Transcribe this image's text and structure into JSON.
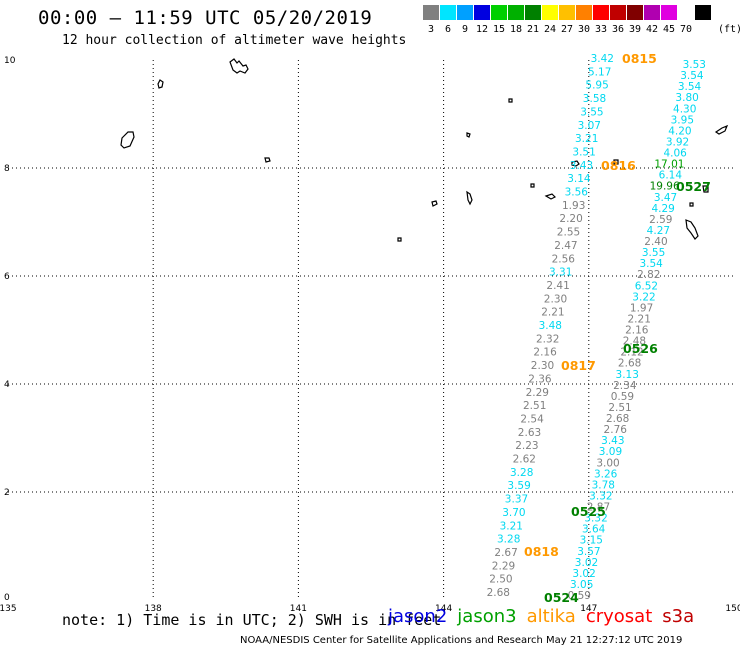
{
  "header": {
    "title": "00:00 – 11:59 UTC 05/20/2019",
    "subtitle": "12 hour collection of altimeter wave heights"
  },
  "colorbar": {
    "unit_label": "(ft)",
    "bins": [
      {
        "color": "#808080",
        "label": "3"
      },
      {
        "color": "#00e5ff",
        "label": "6"
      },
      {
        "color": "#00a0ff",
        "label": "9"
      },
      {
        "color": "#0000e0",
        "label": "12"
      },
      {
        "color": "#00d000",
        "label": "15"
      },
      {
        "color": "#00b000",
        "label": "18"
      },
      {
        "color": "#008000",
        "label": "21"
      },
      {
        "color": "#ffff00",
        "label": "24"
      },
      {
        "color": "#ffc000",
        "label": "27"
      },
      {
        "color": "#ff8000",
        "label": "30"
      },
      {
        "color": "#ff0000",
        "label": "33"
      },
      {
        "color": "#c00000",
        "label": "36"
      },
      {
        "color": "#800000",
        "label": "39"
      },
      {
        "color": "#b000b0",
        "label": "42"
      },
      {
        "color": "#e000e0",
        "label": "45"
      },
      {
        "color": "#ffffff",
        "label": "70"
      },
      {
        "color": "#000000",
        "label": ""
      }
    ]
  },
  "map": {
    "lon_ticks": [
      "135",
      "138",
      "141",
      "144",
      "147",
      "150"
    ],
    "lat_ticks": [
      "0",
      "2",
      "4",
      "6",
      "8",
      "10"
    ],
    "lon_range": [
      135,
      150
    ],
    "lat_range": [
      0,
      10
    ],
    "colors": {
      "grey": "#808080",
      "cyan": "#00d8f0",
      "orange": "#ff9900",
      "green": "#008000",
      "lightgreen": "#00a000"
    },
    "track_a": [
      {
        "v": "0.59",
        "c": "grey"
      },
      {
        "v": "3.05",
        "c": "cyan"
      },
      {
        "v": "3.02",
        "c": "cyan"
      },
      {
        "v": "3.02",
        "c": "cyan"
      },
      {
        "v": "3.57",
        "c": "cyan"
      },
      {
        "v": "3.15",
        "c": "cyan"
      },
      {
        "v": "3.64",
        "c": "cyan"
      },
      {
        "v": "3.32",
        "c": "cyan"
      },
      {
        "v": "2.87",
        "c": "grey"
      },
      {
        "v": "3.32",
        "c": "cyan"
      },
      {
        "v": "3.78",
        "c": "cyan"
      },
      {
        "v": "3.26",
        "c": "cyan"
      },
      {
        "v": "3.00",
        "c": "grey"
      },
      {
        "v": "3.09",
        "c": "cyan"
      },
      {
        "v": "3.43",
        "c": "cyan"
      },
      {
        "v": "2.76",
        "c": "grey"
      },
      {
        "v": "2.68",
        "c": "grey"
      },
      {
        "v": "2.51",
        "c": "grey"
      },
      {
        "v": "0.59",
        "c": "grey"
      },
      {
        "v": "2.34",
        "c": "grey"
      },
      {
        "v": "3.13",
        "c": "cyan"
      },
      {
        "v": "2.68",
        "c": "grey"
      },
      {
        "v": "2.12",
        "c": "grey"
      },
      {
        "v": "2.48",
        "c": "grey"
      },
      {
        "v": "2.16",
        "c": "grey"
      },
      {
        "v": "2.21",
        "c": "grey"
      },
      {
        "v": "1.97",
        "c": "grey"
      },
      {
        "v": "3.22",
        "c": "cyan"
      },
      {
        "v": "6.52",
        "c": "cyan"
      },
      {
        "v": "2.82",
        "c": "grey"
      },
      {
        "v": "3.54",
        "c": "cyan"
      },
      {
        "v": "3.55",
        "c": "cyan"
      },
      {
        "v": "2.40",
        "c": "grey"
      },
      {
        "v": "4.27",
        "c": "cyan"
      },
      {
        "v": "2.59",
        "c": "grey"
      },
      {
        "v": "4.29",
        "c": "cyan"
      },
      {
        "v": "3.47",
        "c": "cyan"
      },
      {
        "v": "19.96",
        "c": "green"
      },
      {
        "v": "6.14",
        "c": "cyan"
      },
      {
        "v": "17.01",
        "c": "lightgreen"
      },
      {
        "v": "4.06",
        "c": "cyan"
      },
      {
        "v": "3.92",
        "c": "cyan"
      },
      {
        "v": "4.20",
        "c": "cyan"
      },
      {
        "v": "3.95",
        "c": "cyan"
      },
      {
        "v": "4.30",
        "c": "cyan"
      },
      {
        "v": "3.80",
        "c": "cyan"
      },
      {
        "v": "3.54",
        "c": "cyan"
      },
      {
        "v": "3.54",
        "c": "cyan"
      },
      {
        "v": "3.53",
        "c": "cyan"
      }
    ],
    "track_b": [
      {
        "v": "2.68",
        "c": "grey"
      },
      {
        "v": "2.50",
        "c": "grey"
      },
      {
        "v": "2.29",
        "c": "grey"
      },
      {
        "v": "2.67",
        "c": "grey"
      },
      {
        "v": "3.28",
        "c": "cyan"
      },
      {
        "v": "3.21",
        "c": "cyan"
      },
      {
        "v": "3.70",
        "c": "cyan"
      },
      {
        "v": "3.37",
        "c": "cyan"
      },
      {
        "v": "3.59",
        "c": "cyan"
      },
      {
        "v": "3.28",
        "c": "cyan"
      },
      {
        "v": "2.62",
        "c": "grey"
      },
      {
        "v": "2.23",
        "c": "grey"
      },
      {
        "v": "2.63",
        "c": "grey"
      },
      {
        "v": "2.54",
        "c": "grey"
      },
      {
        "v": "2.51",
        "c": "grey"
      },
      {
        "v": "2.29",
        "c": "grey"
      },
      {
        "v": "2.36",
        "c": "grey"
      },
      {
        "v": "2.30",
        "c": "grey"
      },
      {
        "v": "2.16",
        "c": "grey"
      },
      {
        "v": "2.32",
        "c": "grey"
      },
      {
        "v": "3.48",
        "c": "cyan"
      },
      {
        "v": "2.21",
        "c": "grey"
      },
      {
        "v": "2.30",
        "c": "grey"
      },
      {
        "v": "2.41",
        "c": "grey"
      },
      {
        "v": "3.31",
        "c": "cyan"
      },
      {
        "v": "2.56",
        "c": "grey"
      },
      {
        "v": "2.47",
        "c": "grey"
      },
      {
        "v": "2.55",
        "c": "grey"
      },
      {
        "v": "2.20",
        "c": "grey"
      },
      {
        "v": "1.93",
        "c": "grey"
      },
      {
        "v": "3.56",
        "c": "cyan"
      },
      {
        "v": "3.14",
        "c": "cyan"
      },
      {
        "v": "3.43",
        "c": "cyan"
      },
      {
        "v": "3.51",
        "c": "cyan"
      },
      {
        "v": "3.21",
        "c": "cyan"
      },
      {
        "v": "3.07",
        "c": "cyan"
      },
      {
        "v": "3.55",
        "c": "cyan"
      },
      {
        "v": "3.58",
        "c": "cyan"
      },
      {
        "v": "5.95",
        "c": "cyan"
      },
      {
        "v": "5.17",
        "c": "cyan"
      },
      {
        "v": "3.42",
        "c": "cyan"
      }
    ],
    "time_labels": [
      {
        "t": "0815",
        "c": "orange"
      },
      {
        "t": "0816",
        "c": "orange"
      },
      {
        "t": "0817",
        "c": "orange"
      },
      {
        "t": "0818",
        "c": "orange"
      },
      {
        "t": "0527",
        "c": "green"
      },
      {
        "t": "0526",
        "c": "green"
      },
      {
        "t": "0525",
        "c": "green"
      },
      {
        "t": "0524",
        "c": "green"
      }
    ]
  },
  "footer": {
    "note": "note: 1) Time is in UTC; 2) SWH is in feet",
    "legend": [
      {
        "name": "jason2",
        "color": "#0000e0"
      },
      {
        "name": "jason3",
        "color": "#00a000"
      },
      {
        "name": "altika",
        "color": "#ff9900"
      },
      {
        "name": "cryosat",
        "color": "#ff0000"
      },
      {
        "name": "s3a",
        "color": "#c00000"
      }
    ],
    "credit": "NOAA/NESDIS Center for Satellite Applications and Research   May 21 12:27:12 UTC 2019"
  }
}
